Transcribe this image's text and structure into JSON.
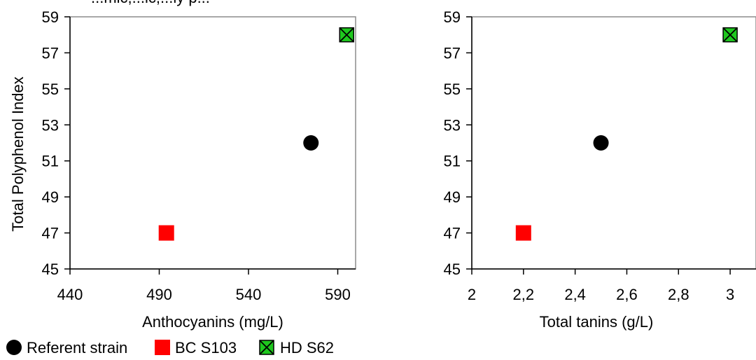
{
  "figure_top_text": "...mic,...ic,...ly p...",
  "chart_data": [
    {
      "type": "scatter",
      "xlabel": "Anthocyanins (mg/L)",
      "ylabel": "Total Polyphenol Index",
      "xlim": [
        440,
        600
      ],
      "ylim": [
        45,
        59
      ],
      "xticks": [
        "440",
        "490",
        "540",
        "590"
      ],
      "yticks": [
        "45",
        "47",
        "49",
        "51",
        "53",
        "55",
        "57",
        "59"
      ],
      "series": [
        {
          "name": "Referent strain",
          "marker": "circle",
          "color": "#000000",
          "points": [
            [
              575,
              52
            ]
          ]
        },
        {
          "name": "BC S103",
          "marker": "square",
          "color": "#ff0000",
          "points": [
            [
              494,
              47
            ]
          ]
        },
        {
          "name": "HD S62",
          "marker": "square-x",
          "color": "#1ec81e",
          "points": [
            [
              595,
              58
            ]
          ]
        }
      ]
    },
    {
      "type": "scatter",
      "xlabel": "Total tanins (g/L)",
      "ylabel": "",
      "xlim": [
        2,
        3.1
      ],
      "ylim": [
        45,
        59
      ],
      "xticks": [
        "2",
        "2,2",
        "2,4",
        "2,6",
        "2,8",
        "3"
      ],
      "yticks": [
        "45",
        "47",
        "49",
        "51",
        "53",
        "55",
        "57",
        "59"
      ],
      "series": [
        {
          "name": "Referent strain",
          "marker": "circle",
          "color": "#000000",
          "points": [
            [
              2.5,
              52
            ]
          ]
        },
        {
          "name": "BC S103",
          "marker": "square",
          "color": "#ff0000",
          "points": [
            [
              2.2,
              47
            ]
          ]
        },
        {
          "name": "HD S62",
          "marker": "square-x",
          "color": "#1ec81e",
          "points": [
            [
              3.0,
              58
            ]
          ]
        }
      ]
    }
  ],
  "legend": {
    "placement": "bottom-left",
    "items": [
      {
        "label": "Referent strain",
        "marker": "circle",
        "color": "#000000"
      },
      {
        "label": "BC S103",
        "marker": "square",
        "color": "#ff0000"
      },
      {
        "label": "HD S62",
        "marker": "square-x",
        "color": "#1ec81e"
      }
    ]
  }
}
